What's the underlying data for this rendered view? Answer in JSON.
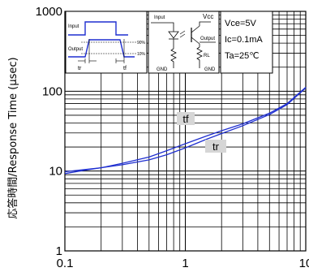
{
  "chart_data": {
    "type": "line",
    "title": "",
    "xlabel": "",
    "ylabel": "応答時間/Response Time (μsec)",
    "xscale": "log",
    "yscale": "log",
    "xlim": [
      0.1,
      10
    ],
    "ylim": [
      1,
      1000
    ],
    "x_ticks": [
      "0.1",
      "1",
      "10"
    ],
    "y_ticks": [
      "1",
      "10",
      "100",
      "1000"
    ],
    "grid": true,
    "legend": "none",
    "series": [
      {
        "name": "tf",
        "color": "#1f2fd0",
        "x": [
          0.1,
          0.15,
          0.2,
          0.3,
          0.5,
          0.7,
          1,
          1.5,
          2,
          3,
          5,
          7,
          10
        ],
        "y": [
          9.3,
          10.3,
          11.0,
          12.5,
          15.0,
          18.0,
          22.0,
          27.5,
          32.0,
          39.0,
          53.0,
          70.0,
          112.0
        ]
      },
      {
        "name": "tr",
        "color": "#1f2fd0",
        "x": [
          0.1,
          0.15,
          0.2,
          0.3,
          0.5,
          0.7,
          1,
          1.5,
          2,
          3,
          5,
          7,
          10
        ],
        "y": [
          9.8,
          10.5,
          11.0,
          12.0,
          13.8,
          16.0,
          19.5,
          25.0,
          29.5,
          37.0,
          51.0,
          68.0,
          110.0
        ]
      }
    ],
    "conditions": {
      "vce": "Vce=5V",
      "ic": "Ic=0.1mA",
      "ta": "Ta=25℃"
    },
    "timing_inset": {
      "input_label": "Input",
      "output_label": "Output",
      "pct_90": "90%",
      "pct_10": "10%",
      "tr_label": "tr",
      "tf_label": "tf"
    },
    "circuit_inset": {
      "input_label": "Input",
      "vcc_label": "Vcc",
      "output_label": "Output",
      "rl_label": "RL",
      "gnd_left": "GND",
      "gnd_right": "GND"
    }
  }
}
